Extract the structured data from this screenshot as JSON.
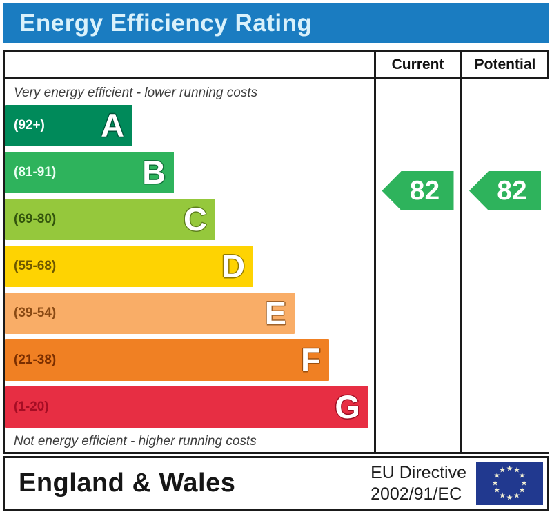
{
  "title": "Energy Efficiency Rating",
  "columns": {
    "current": "Current",
    "potential": "Potential"
  },
  "notes": {
    "top": "Very energy efficient - lower running costs",
    "bottom": "Not energy efficient - higher running costs"
  },
  "ratings": {
    "current": {
      "value": "82",
      "band": "B",
      "arrow_color": "#2eb35c"
    },
    "potential": {
      "value": "82",
      "band": "B",
      "arrow_color": "#2eb35c"
    }
  },
  "footer": {
    "region": "England & Wales",
    "directive_line1": "EU Directive",
    "directive_line2": "2002/91/EC",
    "eu_flag": {
      "background": "#21398f",
      "star_color": "#f3f0d3",
      "star_count": 12
    }
  },
  "theme": {
    "title_bar_background": "#1a7cc1",
    "title_text_color": "#d9f1fb",
    "border_color": "#1a1a1a"
  },
  "chart_data": {
    "type": "bar",
    "orientation": "horizontal",
    "title": "Energy Efficiency Rating",
    "categories": [
      "A",
      "B",
      "C",
      "D",
      "E",
      "F",
      "G"
    ],
    "bands": [
      {
        "letter": "A",
        "range": "(92+)",
        "min": 92,
        "max": 100,
        "width_pct": 34.6,
        "color": "#008a5a",
        "label_color": "#ffffff",
        "outline": "#00563a"
      },
      {
        "letter": "B",
        "range": "(81-91)",
        "min": 81,
        "max": 91,
        "width_pct": 45.8,
        "color": "#2eb35c",
        "label_color": "#eafff2",
        "outline": "#12713a"
      },
      {
        "letter": "C",
        "range": "(69-80)",
        "min": 69,
        "max": 80,
        "width_pct": 57.0,
        "color": "#95c83c",
        "label_color": "#33550d",
        "outline": "#5d7f1c"
      },
      {
        "letter": "D",
        "range": "(55-68)",
        "min": 55,
        "max": 68,
        "width_pct": 67.3,
        "color": "#fed302",
        "label_color": "#6e5800",
        "outline": "#937b00"
      },
      {
        "letter": "E",
        "range": "(39-54)",
        "min": 39,
        "max": 54,
        "width_pct": 78.5,
        "color": "#f9ad67",
        "label_color": "#8a4a14",
        "outline": "#a06229"
      },
      {
        "letter": "F",
        "range": "(21-38)",
        "min": 21,
        "max": 38,
        "width_pct": 87.8,
        "color": "#f08023",
        "label_color": "#7a2e00",
        "outline": "#9c4f0e"
      },
      {
        "letter": "G",
        "range": "(1-20)",
        "min": 1,
        "max": 20,
        "width_pct": 98.5,
        "color": "#e72e43",
        "label_color": "#a50d24",
        "outline": "#9c0e22"
      }
    ],
    "series": [
      {
        "name": "Current",
        "value": 82,
        "band": "B"
      },
      {
        "name": "Potential",
        "value": 82,
        "band": "B"
      }
    ]
  }
}
